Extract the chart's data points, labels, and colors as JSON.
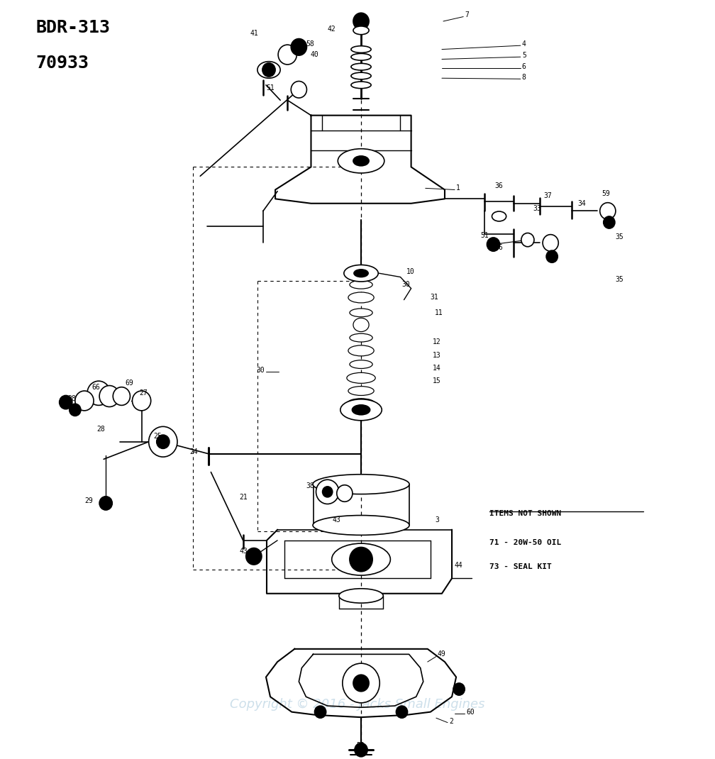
{
  "title_line1": "BDR-313",
  "title_line2": "70933",
  "background_color": "#ffffff",
  "diagram_color": "#000000",
  "watermark_text": "Copyright © 2016 - Jacks Small Engines",
  "watermark_color": "#c8dce8",
  "items_not_shown_title": "ITEMS NOT SHOWN",
  "items_not_shown": [
    "71 - 20W-50 OIL",
    "73 - SEAL KIT"
  ],
  "figsize": [
    10.08,
    10.7
  ],
  "dpi": 100
}
